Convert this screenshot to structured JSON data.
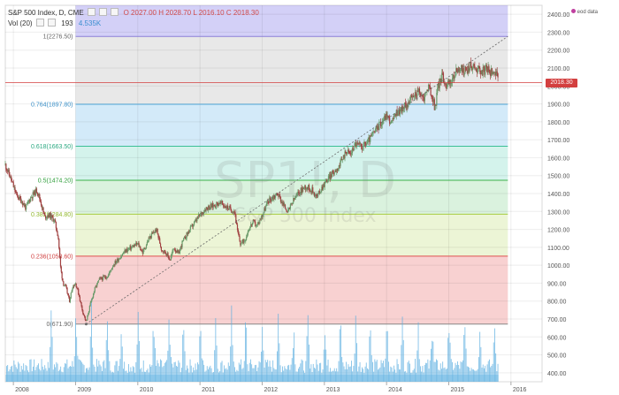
{
  "header": {
    "symbol": "S&P 500 Index, D, CME",
    "ohlc": "O 2027.00  H 2028.70  L 2016.10  C 2018.30",
    "vol_label": "Vol (20)",
    "vol_value1": "193",
    "vol_value2": "4.535K",
    "legend": "eod data"
  },
  "watermark": {
    "ticker": "SP1!, D",
    "name": "S&P 500 Index"
  },
  "last_price": "2018.30",
  "colors": {
    "candle_up": "#6a9a6a",
    "candle_down": "#a04040",
    "volume": "#5aaee0",
    "last_price": "#d33f3f",
    "fib_line_1": "#8a7fd8",
    "fib_line_0764": "#4ea6d8",
    "fib_line_0618": "#3cbf96",
    "fib_line_05": "#3cb04a",
    "fib_line_0382": "#a8cc40",
    "fib_line_0236": "#e05050"
  },
  "chart_data": {
    "type": "line",
    "title": "S&P 500 Index, D, CME",
    "xlabel": "",
    "ylabel": "",
    "ylim": [
      350,
      2450
    ],
    "y_ticks": [
      "2400.00",
      "2300.00",
      "2200.00",
      "2100.00",
      "2000.00",
      "1900.00",
      "1800.00",
      "1700.00",
      "1600.00",
      "1500.00",
      "1400.00",
      "1300.00",
      "1200.00",
      "1100.00",
      "1000.00",
      "900.00",
      "800.00",
      "700.00",
      "600.00",
      "500.00",
      "400.00"
    ],
    "x_ticks": [
      "2008",
      "2009",
      "2010",
      "2011",
      "2012",
      "2013",
      "2014",
      "2015",
      "2016"
    ],
    "x_tick_positions": [
      2008.0,
      2009.0,
      2010.0,
      2011.0,
      2012.0,
      2013.0,
      2014.0,
      2015.0,
      2016.0
    ],
    "xlim": [
      2007.87,
      2016.5
    ],
    "grid": true,
    "legend": "top-right",
    "series": [
      {
        "values": [
          [
            2007.87,
            1560
          ],
          [
            2007.95,
            1490
          ],
          [
            2008.05,
            1390
          ],
          [
            2008.13,
            1360
          ],
          [
            2008.2,
            1320
          ],
          [
            2008.28,
            1380
          ],
          [
            2008.38,
            1420
          ],
          [
            2008.45,
            1340
          ],
          [
            2008.5,
            1270
          ],
          [
            2008.58,
            1280
          ],
          [
            2008.66,
            1250
          ],
          [
            2008.72,
            1160
          ],
          [
            2008.76,
            980
          ],
          [
            2008.8,
            900
          ],
          [
            2008.85,
            870
          ],
          [
            2008.9,
            800
          ],
          [
            2008.95,
            880
          ],
          [
            2009.0,
            900
          ],
          [
            2009.05,
            840
          ],
          [
            2009.1,
            760
          ],
          [
            2009.17,
            680
          ],
          [
            2009.22,
            760
          ],
          [
            2009.3,
            860
          ],
          [
            2009.38,
            920
          ],
          [
            2009.45,
            930
          ],
          [
            2009.52,
            940
          ],
          [
            2009.6,
            1000
          ],
          [
            2009.7,
            1040
          ],
          [
            2009.8,
            1080
          ],
          [
            2009.9,
            1100
          ],
          [
            2010.0,
            1120
          ],
          [
            2010.08,
            1070
          ],
          [
            2010.18,
            1150
          ],
          [
            2010.3,
            1200
          ],
          [
            2010.38,
            1090
          ],
          [
            2010.45,
            1070
          ],
          [
            2010.52,
            1030
          ],
          [
            2010.58,
            1100
          ],
          [
            2010.65,
            1060
          ],
          [
            2010.72,
            1130
          ],
          [
            2010.82,
            1190
          ],
          [
            2010.92,
            1240
          ],
          [
            2011.0,
            1280
          ],
          [
            2011.1,
            1320
          ],
          [
            2011.2,
            1330
          ],
          [
            2011.32,
            1350
          ],
          [
            2011.4,
            1330
          ],
          [
            2011.5,
            1310
          ],
          [
            2011.56,
            1300
          ],
          [
            2011.6,
            1190
          ],
          [
            2011.65,
            1120
          ],
          [
            2011.72,
            1140
          ],
          [
            2011.78,
            1200
          ],
          [
            2011.85,
            1240
          ],
          [
            2011.92,
            1220
          ],
          [
            2012.0,
            1280
          ],
          [
            2012.1,
            1360
          ],
          [
            2012.25,
            1400
          ],
          [
            2012.35,
            1330
          ],
          [
            2012.42,
            1300
          ],
          [
            2012.5,
            1360
          ],
          [
            2012.6,
            1410
          ],
          [
            2012.7,
            1440
          ],
          [
            2012.8,
            1420
          ],
          [
            2012.88,
            1380
          ],
          [
            2012.95,
            1430
          ],
          [
            2013.05,
            1480
          ],
          [
            2013.15,
            1520
          ],
          [
            2013.25,
            1560
          ],
          [
            2013.35,
            1640
          ],
          [
            2013.42,
            1620
          ],
          [
            2013.5,
            1680
          ],
          [
            2013.6,
            1660
          ],
          [
            2013.7,
            1690
          ],
          [
            2013.8,
            1740
          ],
          [
            2013.9,
            1790
          ],
          [
            2014.0,
            1840
          ],
          [
            2014.08,
            1790
          ],
          [
            2014.15,
            1850
          ],
          [
            2014.25,
            1870
          ],
          [
            2014.38,
            1920
          ],
          [
            2014.5,
            1970
          ],
          [
            2014.6,
            1930
          ],
          [
            2014.67,
            2000
          ],
          [
            2014.75,
            1920
          ],
          [
            2014.78,
            1870
          ],
          [
            2014.82,
            1990
          ],
          [
            2014.9,
            2060
          ],
          [
            2014.96,
            2000
          ],
          [
            2015.05,
            2030
          ],
          [
            2015.15,
            2100
          ],
          [
            2015.25,
            2080
          ],
          [
            2015.35,
            2110
          ],
          [
            2015.45,
            2100
          ],
          [
            2015.55,
            2080
          ],
          [
            2015.62,
            2100
          ],
          [
            2015.66,
            2060
          ],
          [
            2015.7,
            2095
          ],
          [
            2015.76,
            2070
          ],
          [
            2015.8,
            2018
          ]
        ]
      }
    ],
    "fibonacci": [
      {
        "label": "1(2276.50)",
        "value": 2276.5
      },
      {
        "label": "0.764(1897.80)",
        "value": 1897.8
      },
      {
        "label": "0.618(1663.50)",
        "value": 1663.5
      },
      {
        "label": "0.5(1474.20)",
        "value": 1474.2
      },
      {
        "label": "0.382(1284.80)",
        "value": 1284.8
      },
      {
        "label": "0.236(1050.60)",
        "value": 1050.6
      },
      {
        "label": "0(671.90)",
        "value": 671.9
      }
    ],
    "fib_x_range": [
      2009.0,
      2015.95
    ],
    "trendline": [
      [
        2009.17,
        671.9
      ],
      [
        2015.95,
        2276.5
      ]
    ],
    "volume_spikes": [
      2008.6,
      2009.0,
      2009.25,
      2009.5,
      2009.73,
      2010.0,
      2010.25,
      2010.5,
      2010.73,
      2011.0,
      2011.25,
      2011.5,
      2011.73,
      2012.0,
      2012.25,
      2012.5,
      2012.73,
      2013.0,
      2013.25,
      2013.5,
      2013.73,
      2014.0,
      2014.25,
      2014.5,
      2014.73,
      2015.0,
      2015.25,
      2015.5,
      2015.73
    ]
  }
}
